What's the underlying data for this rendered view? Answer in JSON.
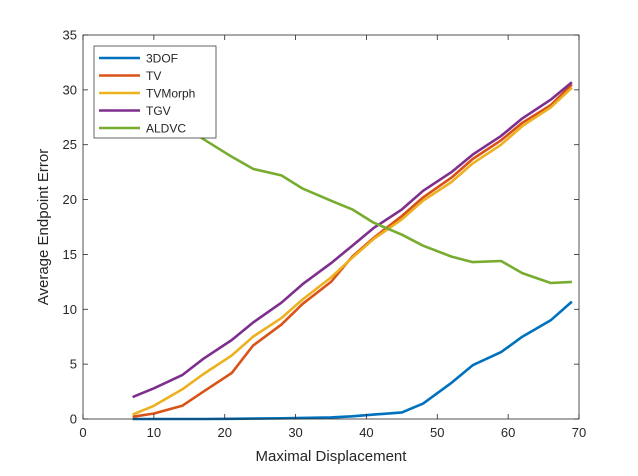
{
  "chart_data": {
    "type": "line",
    "xlabel": "Maximal Displacement",
    "ylabel": "Average Endpoint Error",
    "xlim": [
      0,
      70
    ],
    "ylim": [
      0,
      35
    ],
    "xticks": [
      0,
      10,
      20,
      30,
      40,
      50,
      60,
      70
    ],
    "yticks": [
      0,
      5,
      10,
      15,
      20,
      25,
      30,
      35
    ],
    "grid": false,
    "legend_position": "top-left",
    "series": [
      {
        "name": "3DOF",
        "color": "#0072bd",
        "x": [
          7,
          10,
          14,
          17,
          21,
          24,
          28,
          31,
          35,
          38,
          41,
          45,
          48,
          52,
          55,
          59,
          62,
          66,
          69
        ],
        "y": [
          0.0,
          0.0,
          0.0,
          0.0,
          0.02,
          0.04,
          0.06,
          0.1,
          0.15,
          0.25,
          0.4,
          0.6,
          1.4,
          3.3,
          4.9,
          6.1,
          7.5,
          9.0,
          10.7
        ]
      },
      {
        "name": "TV",
        "color": "#d95319",
        "x": [
          7,
          10,
          14,
          17,
          21,
          24,
          28,
          31,
          35,
          38,
          41,
          45,
          48,
          52,
          55,
          59,
          62,
          66,
          69
        ],
        "y": [
          0.2,
          0.5,
          1.2,
          2.5,
          4.2,
          6.7,
          8.6,
          10.5,
          12.5,
          14.8,
          16.5,
          18.5,
          20.2,
          22.0,
          23.7,
          25.4,
          27.0,
          28.6,
          30.5
        ]
      },
      {
        "name": "TVMorph",
        "color": "#edb120",
        "x": [
          7,
          10,
          14,
          17,
          21,
          24,
          28,
          31,
          35,
          38,
          41,
          45,
          48,
          52,
          55,
          59,
          62,
          66,
          69
        ],
        "y": [
          0.4,
          1.2,
          2.7,
          4.1,
          5.8,
          7.5,
          9.2,
          10.9,
          12.9,
          14.7,
          16.4,
          18.2,
          19.9,
          21.6,
          23.3,
          25.0,
          26.7,
          28.4,
          30.2
        ]
      },
      {
        "name": "TGV",
        "color": "#7e2f8e",
        "x": [
          7,
          10,
          14,
          17,
          21,
          24,
          28,
          31,
          35,
          38,
          41,
          45,
          48,
          52,
          55,
          59,
          62,
          66,
          69
        ],
        "y": [
          2.0,
          2.8,
          4.0,
          5.5,
          7.2,
          8.8,
          10.6,
          12.3,
          14.2,
          15.8,
          17.4,
          19.1,
          20.8,
          22.5,
          24.1,
          25.8,
          27.4,
          29.1,
          30.7
        ]
      },
      {
        "name": "ALDVC",
        "color": "#77ac30",
        "x": [
          7,
          10,
          14,
          17,
          21,
          24,
          28,
          31,
          35,
          38,
          41,
          45,
          48,
          52,
          55,
          59,
          62,
          66,
          69
        ],
        "y": [
          30.2,
          28.6,
          27.1,
          25.5,
          23.9,
          22.8,
          22.2,
          21.0,
          19.9,
          19.1,
          17.9,
          16.8,
          15.8,
          14.8,
          14.3,
          14.4,
          13.3,
          12.4,
          12.5
        ]
      }
    ]
  }
}
